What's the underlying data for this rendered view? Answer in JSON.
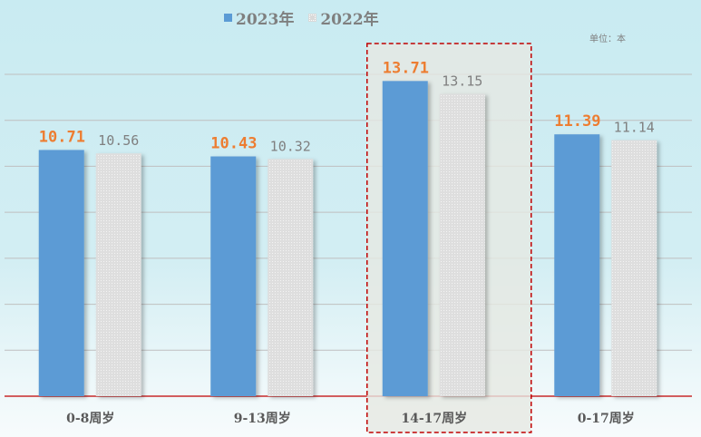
{
  "chart_data": {
    "type": "bar",
    "categories": [
      "0-8周岁",
      "9-13周岁",
      "14-17周岁",
      "0-17周岁"
    ],
    "series": [
      {
        "name": "2023年",
        "values": [
          10.71,
          10.43,
          13.71,
          11.39
        ],
        "color": "#5b9bd5",
        "label_color": "#ed7d31"
      },
      {
        "name": "2022年",
        "values": [
          10.56,
          10.32,
          13.15,
          11.14
        ],
        "color": "#d9d9d9",
        "label_color": "#7f7f7f"
      }
    ],
    "unit": "单位：本",
    "ylim": [
      0,
      14
    ],
    "grid": true,
    "legend": "top-center",
    "highlight_category": "14-17周岁",
    "highlight_color": "#c00000",
    "baseline_color": "#c00000"
  }
}
